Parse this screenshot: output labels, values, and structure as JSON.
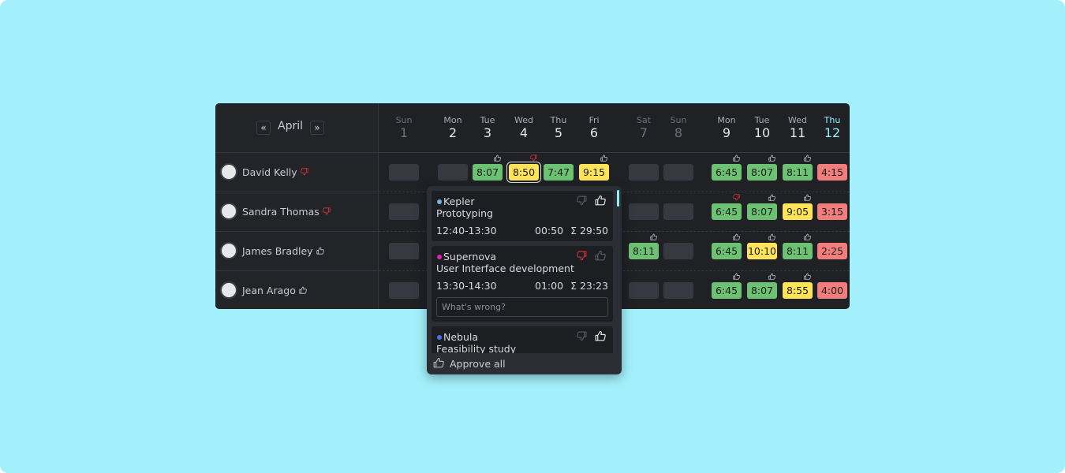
{
  "header": {
    "month": "April",
    "prev": "«",
    "next": "»"
  },
  "days": [
    {
      "weekday": "Sun",
      "date": 1,
      "weekend": true
    },
    {
      "weekday": "Mon",
      "date": 2
    },
    {
      "weekday": "Tue",
      "date": 3
    },
    {
      "weekday": "Wed",
      "date": 4
    },
    {
      "weekday": "Thu",
      "date": 5
    },
    {
      "weekday": "Fri",
      "date": 6
    },
    {
      "weekday": "Sat",
      "date": 7,
      "weekend": true
    },
    {
      "weekday": "Sun",
      "date": 8,
      "weekend": true
    },
    {
      "weekday": "Mon",
      "date": 9
    },
    {
      "weekday": "Tue",
      "date": 10
    },
    {
      "weekday": "Wed",
      "date": 11
    },
    {
      "weekday": "Thu",
      "date": 12,
      "today": true
    }
  ],
  "people": [
    {
      "name": "David Kelly",
      "approval": "down",
      "cells": [
        null,
        null,
        {
          "time": "8:07",
          "color": "#6cc272",
          "approval": "up"
        },
        {
          "time": "8:50",
          "color": "#ffe45a",
          "approval": "down",
          "selected": true
        },
        {
          "time": "7:47",
          "color": "#6cc272"
        },
        {
          "time": "9:15",
          "color": "#ffe45a",
          "approval": "up"
        },
        null,
        null,
        {
          "time": "6:45",
          "color": "#6cc272",
          "approval": "up"
        },
        {
          "time": "8:07",
          "color": "#6cc272",
          "approval": "up"
        },
        {
          "time": "8:11",
          "color": "#6cc272",
          "approval": "up"
        },
        {
          "time": "4:15",
          "color": "#f27d7d"
        }
      ]
    },
    {
      "name": "Sandra Thomas",
      "approval": "down",
      "cells": [
        null,
        null,
        null,
        null,
        null,
        null,
        null,
        null,
        {
          "time": "6:45",
          "color": "#6cc272",
          "approval": "down"
        },
        {
          "time": "8:07",
          "color": "#6cc272",
          "approval": "up"
        },
        {
          "time": "9:05",
          "color": "#ffe45a",
          "approval": "up"
        },
        {
          "time": "3:15",
          "color": "#f27d7d"
        }
      ]
    },
    {
      "name": "James Bradley",
      "approval": "up",
      "cells": [
        null,
        null,
        null,
        null,
        null,
        null,
        {
          "time": "8:11",
          "color": "#6cc272",
          "approval": "up"
        },
        null,
        {
          "time": "6:45",
          "color": "#6cc272",
          "approval": "up"
        },
        {
          "time": "10:10",
          "color": "#ffe45a",
          "approval": "up"
        },
        {
          "time": "8:11",
          "color": "#6cc272",
          "approval": "up"
        },
        {
          "time": "2:25",
          "color": "#f27d7d"
        }
      ]
    },
    {
      "name": "Jean Arago",
      "approval": "up",
      "cells": [
        null,
        null,
        null,
        null,
        null,
        null,
        null,
        null,
        {
          "time": "6:45",
          "color": "#6cc272",
          "approval": "up"
        },
        {
          "time": "8:07",
          "color": "#6cc272",
          "approval": "up"
        },
        {
          "time": "8:55",
          "color": "#ffe45a",
          "approval": "up"
        },
        {
          "time": "4:00",
          "color": "#f27d7d"
        }
      ]
    }
  ],
  "popup": {
    "entries": [
      {
        "project": "Kepler",
        "color": "#6fb3e8",
        "task": "Prototyping",
        "range": "12:40-13:30",
        "duration": "00:50",
        "total": "Σ 29:50",
        "approval": "up"
      },
      {
        "project": "Supernova",
        "color": "#e020b0",
        "task": "User Interface development",
        "range": "13:30-14:30",
        "duration": "01:00",
        "total": "Σ 23:23",
        "approval": "down",
        "comment_placeholder": "What's wrong?"
      },
      {
        "project": "Nebula",
        "color": "#4a6ef0",
        "task": "Feasibility study",
        "approval": "up"
      }
    ],
    "approve_all": "Approve all"
  }
}
